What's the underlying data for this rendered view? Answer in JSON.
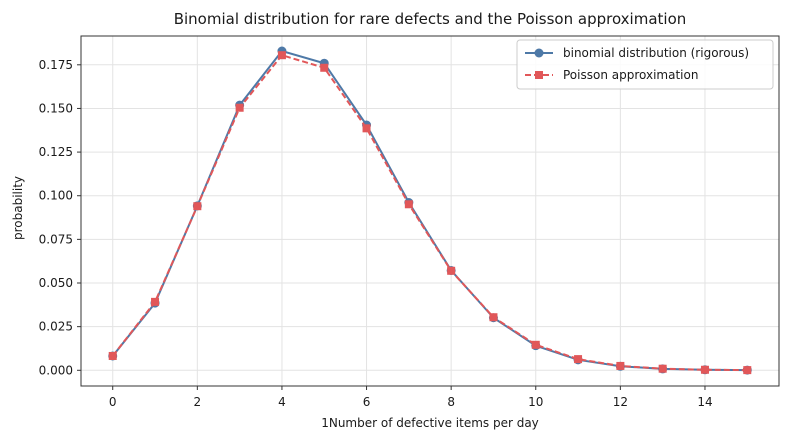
{
  "chart_data": {
    "type": "line",
    "title": "Binomial distribution for rare defects and the Poisson approximation",
    "xlabel": "1Number of defective items per day",
    "ylabel": "probability",
    "x": [
      0,
      1,
      2,
      3,
      4,
      5,
      6,
      7,
      8,
      9,
      10,
      11,
      12,
      13,
      14,
      15
    ],
    "xlim": [
      -0.75,
      15.75
    ],
    "ylim": [
      -0.009,
      0.1915
    ],
    "xticks": [
      0,
      2,
      4,
      6,
      8,
      10,
      12,
      14
    ],
    "xtick_labels": [
      "0",
      "2",
      "4",
      "6",
      "8",
      "10",
      "12",
      "14"
    ],
    "yticks": [
      0.0,
      0.025,
      0.05,
      0.075,
      0.1,
      0.125,
      0.15,
      0.175
    ],
    "ytick_labels": [
      "0.000",
      "0.025",
      "0.050",
      "0.075",
      "0.100",
      "0.125",
      "0.150",
      "0.175"
    ],
    "grid": true,
    "legend_position": "top-right",
    "series": [
      {
        "name": "binomial distribution (rigorous)",
        "color": "#4e79a7",
        "line_style": "solid",
        "marker": "circle",
        "values": [
          0.0082,
          0.0385,
          0.0942,
          0.1519,
          0.1829,
          0.1759,
          0.1405,
          0.0961,
          0.0572,
          0.0301,
          0.0141,
          0.006,
          0.0023,
          0.0008,
          0.0003,
          0.0001
        ]
      },
      {
        "name": "Poisson approximation",
        "color": "#e15759",
        "line_style": "dashed",
        "marker": "square",
        "values": [
          0.0082,
          0.0392,
          0.094,
          0.1504,
          0.1805,
          0.1733,
          0.1386,
          0.0951,
          0.057,
          0.0304,
          0.0146,
          0.0064,
          0.0025,
          0.0009,
          0.0003,
          0.0001
        ]
      }
    ]
  }
}
